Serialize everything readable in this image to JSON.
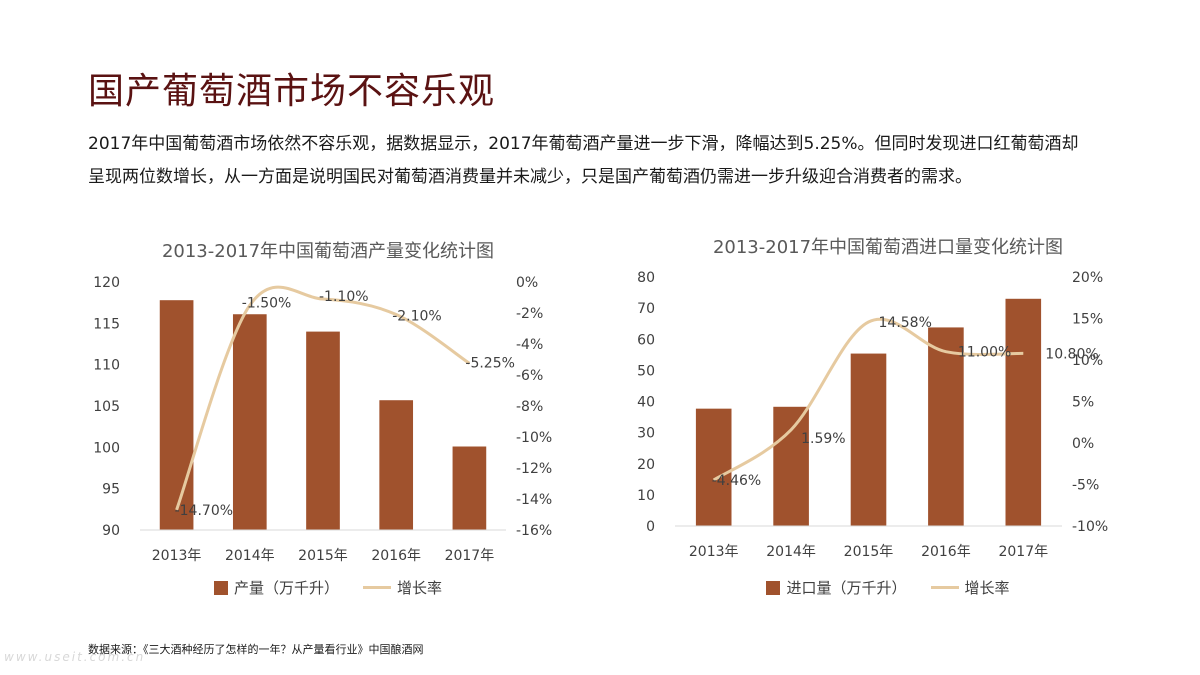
{
  "page": {
    "title": "国产葡萄酒市场不容乐观",
    "description_line1": "2017年中国葡萄酒市场依然不容乐观，据数据显示，2017年葡萄酒产量进一步下滑，降幅达到5.25%。但同时发现进口红葡萄酒却",
    "description_line2": "呈现两位数增长，从一方面是说明国民对葡萄酒消费量并未减少，只是国产葡萄酒仍需进一步升级迎合消费者的需求。",
    "source": "数据来源：《三大酒种经历了怎样的一年？从产量看行业》中国酿酒网",
    "watermark": "www.useit.com.cn"
  },
  "colors": {
    "title": "#5a1212",
    "bar": "#a0522d",
    "line": "#e6caa0"
  },
  "chart_data": [
    {
      "type": "bar",
      "title": "2013-2017年中国葡萄酒产量变化统计图",
      "categories": [
        "2013年",
        "2014年",
        "2015年",
        "2016年",
        "2017年"
      ],
      "series": [
        {
          "name": "产量（万千升）",
          "type": "bar",
          "axis": "left",
          "values": [
            117.8,
            116.1,
            114.0,
            105.7,
            100.1
          ]
        },
        {
          "name": "增长率",
          "type": "line",
          "axis": "right",
          "values": [
            -14.7,
            -1.5,
            -1.1,
            -2.1,
            -5.25
          ],
          "labels": [
            "-14.70%",
            "-1.50%",
            "-1.10%",
            "-2.10%",
            "-5.25%"
          ]
        }
      ],
      "ylim_left": [
        90,
        120
      ],
      "yticks_left": [
        "90",
        "95",
        "100",
        "105",
        "110",
        "115",
        "120"
      ],
      "ylim_right": [
        -16,
        0
      ],
      "yticks_right": [
        "-16%",
        "-14%",
        "-12%",
        "-10%",
        "-8%",
        "-6%",
        "-4%",
        "-2%",
        "0%"
      ],
      "legend": [
        "产量（万千升）",
        "增长率"
      ],
      "legend_position": "bottom"
    },
    {
      "type": "bar",
      "title": "2013-2017年中国葡萄酒进口量变化统计图",
      "categories": [
        "2013年",
        "2014年",
        "2015年",
        "2016年",
        "2017年"
      ],
      "series": [
        {
          "name": "进口量（万千升）",
          "type": "bar",
          "axis": "left",
          "values": [
            37.7,
            38.3,
            55.4,
            63.8,
            73.0
          ]
        },
        {
          "name": "增长率",
          "type": "line",
          "axis": "right",
          "values": [
            -4.46,
            1.59,
            14.58,
            11.0,
            10.8
          ],
          "labels": [
            "-4.46%",
            "1.59%",
            "14.58%",
            "11.00%",
            "10.80%"
          ]
        }
      ],
      "ylim_left": [
        0,
        80
      ],
      "yticks_left": [
        "0",
        "10",
        "20",
        "30",
        "40",
        "50",
        "60",
        "70",
        "80"
      ],
      "ylim_right": [
        -10,
        20
      ],
      "yticks_right": [
        "-10%",
        "-5%",
        "0%",
        "5%",
        "10%",
        "15%",
        "20%"
      ],
      "legend": [
        "进口量（万千升）",
        "增长率"
      ],
      "legend_position": "bottom"
    }
  ]
}
